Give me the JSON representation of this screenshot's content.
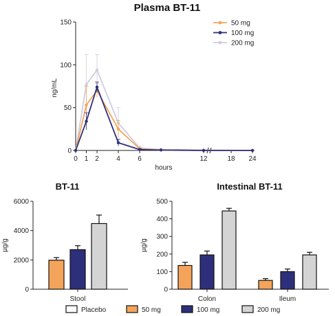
{
  "colors": {
    "placebo": "#ffffff",
    "mg50": "#f4a45a",
    "mg100": "#2e2f7a",
    "mg200": "#d4d4d4",
    "line200": "#d0cce0",
    "axis": "#222222"
  },
  "chart_data": [
    {
      "type": "line",
      "title": "Plasma BT-11",
      "xlabel": "hours",
      "ylabel": "ng/mL",
      "xticks": [
        "0",
        "1",
        "2",
        "4",
        "6",
        "12",
        "18",
        "24"
      ],
      "yticks": [
        "0",
        "50",
        "100",
        "150"
      ],
      "ylim": [
        0,
        150
      ],
      "axis_break": "between 12 and 24 hours",
      "legend_position": "top-right",
      "series": [
        {
          "name": "50 mg",
          "x": [
            0,
            1,
            2,
            4,
            6,
            8,
            12,
            24
          ],
          "y": [
            0,
            53,
            70,
            25,
            2,
            0.5,
            0,
            0
          ],
          "err": [
            0,
            22,
            8,
            10,
            1,
            0.3,
            0,
            0
          ]
        },
        {
          "name": "100 mg",
          "x": [
            0,
            1,
            2,
            4,
            6,
            8,
            12,
            24
          ],
          "y": [
            0,
            34,
            74,
            9,
            1,
            0.5,
            0,
            0
          ],
          "err": [
            0,
            10,
            6,
            4,
            1,
            0.3,
            0,
            0
          ]
        },
        {
          "name": "200 mg",
          "x": [
            0,
            1,
            2,
            4,
            6,
            8,
            12,
            24
          ],
          "y": [
            0,
            77,
            94,
            32,
            3,
            1,
            0.5,
            0
          ],
          "err": [
            0,
            35,
            18,
            18,
            2,
            0.5,
            0.3,
            0
          ]
        }
      ]
    },
    {
      "type": "bar",
      "title": "BT-11",
      "ylabel": "µg/g",
      "categories": [
        "Stool"
      ],
      "yticks": [
        "0",
        "2000",
        "4000",
        "6000"
      ],
      "ylim": [
        0,
        6000
      ],
      "series": [
        {
          "name": "50 mg",
          "values": [
            1980
          ],
          "err": [
            180
          ]
        },
        {
          "name": "100 mg",
          "values": [
            2700
          ],
          "err": [
            270
          ]
        },
        {
          "name": "200 mg",
          "values": [
            4480
          ],
          "err": [
            580
          ]
        }
      ]
    },
    {
      "type": "bar",
      "title": "Intestinal BT-11",
      "ylabel": "µg/g",
      "categories": [
        "Colon",
        "Ileum"
      ],
      "yticks": [
        "0",
        "100",
        "200",
        "300",
        "400",
        "500"
      ],
      "ylim": [
        0,
        500
      ],
      "series": [
        {
          "name": "50 mg",
          "values": [
            135,
            50
          ],
          "err": [
            18,
            10
          ]
        },
        {
          "name": "100 mg",
          "values": [
            195,
            100
          ],
          "err": [
            22,
            15
          ]
        },
        {
          "name": "200 mg",
          "values": [
            445,
            195
          ],
          "err": [
            15,
            15
          ]
        }
      ]
    }
  ],
  "legend_bottom": [
    "Placebo",
    "50 mg",
    "100 mg",
    "200 mg"
  ]
}
